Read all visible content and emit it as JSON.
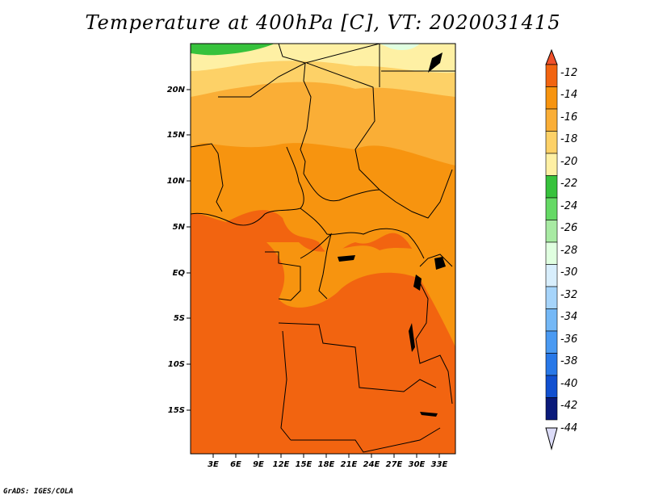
{
  "title": "Temperature at 400hPa [C], VT: 2020031415",
  "credit": "GrADS: IGES/COLA",
  "map": {
    "lat_labels": [
      "20N",
      "15N",
      "10N",
      "5N",
      "EQ",
      "5S",
      "10S",
      "15S"
    ],
    "lon_labels": [
      "3E",
      "6E",
      "9E",
      "12E",
      "15E",
      "18E",
      "21E",
      "24E",
      "27E",
      "30E",
      "33E"
    ],
    "region": "Central Africa"
  },
  "colorbar": {
    "labels": [
      "-12",
      "-14",
      "-16",
      "-18",
      "-20",
      "-22",
      "-24",
      "-26",
      "-28",
      "-30",
      "-32",
      "-34",
      "-36",
      "-38",
      "-40",
      "-42",
      "-44"
    ],
    "colors": [
      "#f0502a",
      "#f26410",
      "#f7940f",
      "#faae36",
      "#fdd167",
      "#fef0a4",
      "#37c23c",
      "#65d965",
      "#a8eaa3",
      "#e0ffe0",
      "#d8eefc",
      "#a6d4fa",
      "#74b8f6",
      "#4a9af2",
      "#2878e8",
      "#1150d0",
      "#0a1a7a",
      "#dcdcf8"
    ]
  }
}
